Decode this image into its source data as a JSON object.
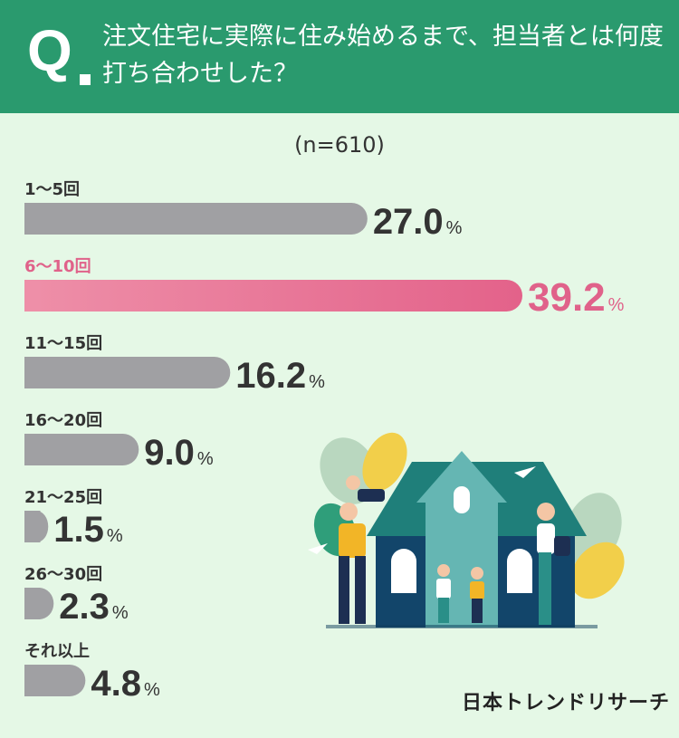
{
  "question": {
    "mark": "Q",
    "text": "注文住宅に実際に住み始めるまで、担当者とは何度打ち合わせした？"
  },
  "sample_label": "(n=610)",
  "brand": "日本トレンドリサーチ",
  "colors": {
    "header": "#2a9a6e",
    "background": "#e5f8e6",
    "bar": "#a0a0a3",
    "highlight_bar_start": "#ee8fa8",
    "highlight_bar_end": "#e3628a",
    "highlight_text": "#e0628a",
    "value_text": "#333333"
  },
  "chart_data": {
    "type": "bar",
    "orientation": "horizontal",
    "categories": [
      "1〜5回",
      "6〜10回",
      "11〜15回",
      "16〜20回",
      "21〜25回",
      "26〜30回",
      "それ以上"
    ],
    "values": [
      27.0,
      39.2,
      16.2,
      9.0,
      1.5,
      2.3,
      4.8
    ],
    "value_suffix": "%",
    "highlight_index": 1,
    "xlim": [
      0,
      39.2
    ]
  },
  "illustration": {
    "icon": "family-house-illustration"
  }
}
